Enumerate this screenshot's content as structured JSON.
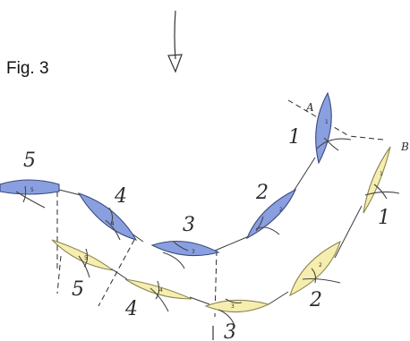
{
  "figure": {
    "label": "Fig. 3",
    "point_a": "A",
    "point_b": "B"
  },
  "formation_blue": {
    "color": "#8a9fe0",
    "boats": [
      {
        "label": "1",
        "hull_mark": "1"
      },
      {
        "label": "2",
        "hull_mark": "2"
      },
      {
        "label": "3",
        "hull_mark": "3"
      },
      {
        "label": "4",
        "hull_mark": "4"
      },
      {
        "label": "5",
        "hull_mark": "5"
      }
    ]
  },
  "formation_yellow": {
    "color": "#f5eeae",
    "boats": [
      {
        "label": "1",
        "hull_mark": "1"
      },
      {
        "label": "2",
        "hull_mark": "2"
      },
      {
        "label": "3",
        "hull_mark": "3"
      },
      {
        "label": "4",
        "hull_mark": "4"
      },
      {
        "label": "5",
        "hull_mark": "5"
      }
    ]
  }
}
